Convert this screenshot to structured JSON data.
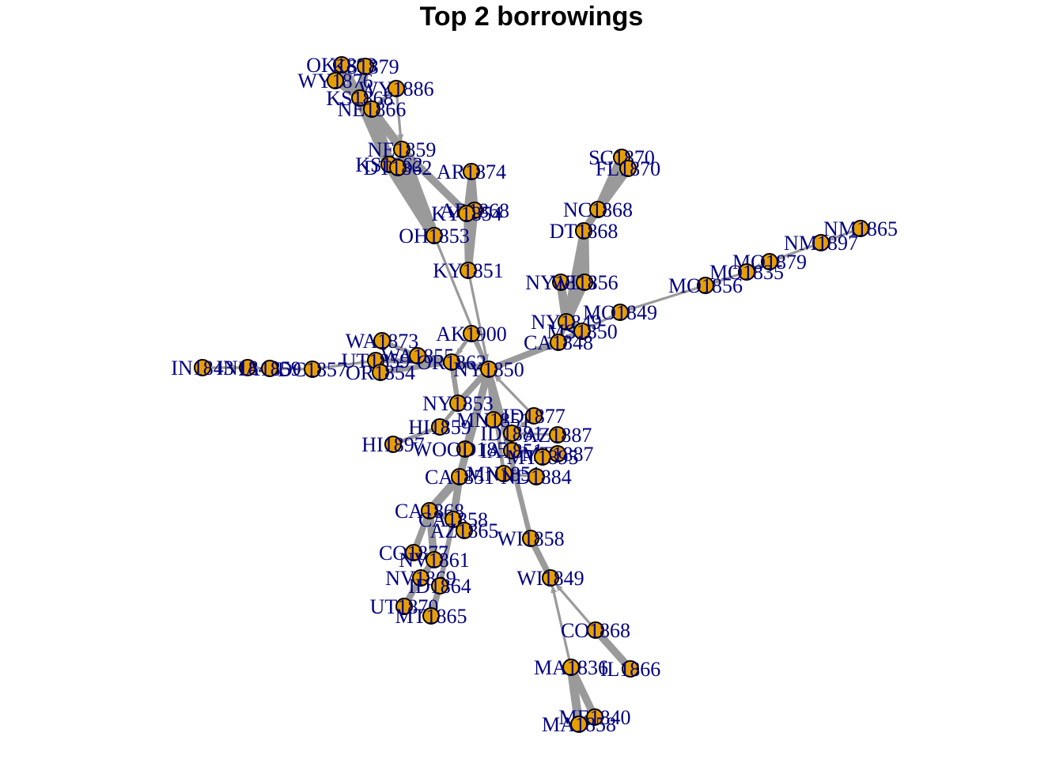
{
  "title": "Top 2 borrowings",
  "colors": {
    "edge": "#9a9a9a",
    "vertex": "#e69f00",
    "vertex_border": "#000000",
    "label": "#000080"
  },
  "nodes": [
    {
      "id": "OK1893",
      "label": "OK1893"
    },
    {
      "id": "KS1879",
      "label": "KS1879"
    },
    {
      "id": "WY1876",
      "label": "WY1876"
    },
    {
      "id": "WY1886",
      "label": "WY1886"
    },
    {
      "id": "KS1868",
      "label": "KS1868"
    },
    {
      "id": "NE1866",
      "label": "NE1866"
    },
    {
      "id": "NE1859",
      "label": "NE1859"
    },
    {
      "id": "KS1862",
      "label": "KS1862"
    },
    {
      "id": "DT1862",
      "label": "DT1862"
    },
    {
      "id": "AR1874",
      "label": "AR1874"
    },
    {
      "id": "AR1868",
      "label": "AR1868"
    },
    {
      "id": "KY1854",
      "label": "KY1854"
    },
    {
      "id": "OH1853",
      "label": "OH1853"
    },
    {
      "id": "KY1851",
      "label": "KY1851"
    },
    {
      "id": "SC1870",
      "label": "SC1870"
    },
    {
      "id": "FL1870",
      "label": "FL1870"
    },
    {
      "id": "NC1868",
      "label": "NC1868"
    },
    {
      "id": "DT1868",
      "label": "DT1868"
    },
    {
      "id": "NM1865",
      "label": "NM1865"
    },
    {
      "id": "NM1897",
      "label": "NM1897"
    },
    {
      "id": "MO1879",
      "label": "MO1879"
    },
    {
      "id": "MO1835",
      "label": "MO1835"
    },
    {
      "id": "MO1856",
      "label": "MO1856"
    },
    {
      "id": "NY1856",
      "label": "NY1856"
    },
    {
      "id": "WI1856",
      "label": "WI1856"
    },
    {
      "id": "MO1849",
      "label": "MO1849"
    },
    {
      "id": "NY1849",
      "label": "NY1849"
    },
    {
      "id": "MS1850",
      "label": "MS1850"
    },
    {
      "id": "CA1848",
      "label": "CA1848"
    },
    {
      "id": "AK1900",
      "label": "AK1900"
    },
    {
      "id": "WA1873",
      "label": "WA1873"
    },
    {
      "id": "WA1855",
      "label": "WA1855"
    },
    {
      "id": "UT1859",
      "label": "UT1859"
    },
    {
      "id": "OR1854",
      "label": "OR1854"
    },
    {
      "id": "OR1862",
      "label": "OR1862"
    },
    {
      "id": "NY1850",
      "label": "NY1850"
    },
    {
      "id": "IN1843",
      "label": "IN1843"
    },
    {
      "id": "IN1848",
      "label": "IN1848"
    },
    {
      "id": "IA1859",
      "label": "IA1859"
    },
    {
      "id": "DC1857",
      "label": "DC1857"
    },
    {
      "id": "NY1853",
      "label": "NY1853"
    },
    {
      "id": "HI1859",
      "label": "HI1859"
    },
    {
      "id": "MN1851",
      "label": "MN1851"
    },
    {
      "id": "ID1877",
      "label": "ID1877"
    },
    {
      "id": "ID1881",
      "label": "ID1881"
    },
    {
      "id": "AZ1887",
      "label": "AZ1887"
    },
    {
      "id": "HI1897",
      "label": "HI1897"
    },
    {
      "id": "WOOD1857",
      "label": "WOOD1857"
    },
    {
      "id": "IA1851",
      "label": "IA1851"
    },
    {
      "id": "MT1887",
      "label": "MT1887"
    },
    {
      "id": "MT1895",
      "label": "MT1895"
    },
    {
      "id": "CA1851",
      "label": "CA1851"
    },
    {
      "id": "MN1851b",
      "label": "MN1851"
    },
    {
      "id": "ND1884",
      "label": "ND1884"
    },
    {
      "id": "CA1868",
      "label": "CA1868"
    },
    {
      "id": "CA1858",
      "label": "CA1858"
    },
    {
      "id": "AZ1865",
      "label": "AZ1865"
    },
    {
      "id": "WI1858",
      "label": "WI1858"
    },
    {
      "id": "CO1877",
      "label": "CO1877"
    },
    {
      "id": "NV1861",
      "label": "NV1861"
    },
    {
      "id": "NV1869",
      "label": "NV1869"
    },
    {
      "id": "ID1864",
      "label": "ID1864"
    },
    {
      "id": "WI1849",
      "label": "WI1849"
    },
    {
      "id": "UT1870",
      "label": "UT1870"
    },
    {
      "id": "MT1865",
      "label": "MT1865"
    },
    {
      "id": "CO1868",
      "label": "CO1868"
    },
    {
      "id": "MA1836",
      "label": "MA1836"
    },
    {
      "id": "IL1866",
      "label": "IL1866"
    },
    {
      "id": "ME1840",
      "label": "ME1840"
    },
    {
      "id": "MA1858",
      "label": "MA1858"
    }
  ],
  "edges": [
    {
      "from": "KS1879",
      "to": "KS1868",
      "w": 7
    },
    {
      "from": "OK1893",
      "to": "KS1868",
      "w": 7
    },
    {
      "from": "WY1876",
      "to": "KS1868",
      "w": 6
    },
    {
      "from": "KS1868",
      "to": "KS1862",
      "w": 9
    },
    {
      "from": "NE1866",
      "to": "KS1862",
      "w": 9
    },
    {
      "from": "NE1866",
      "to": "NE1859",
      "w": 7
    },
    {
      "from": "WY1886",
      "to": "NE1866",
      "w": 3
    },
    {
      "from": "NE1859",
      "to": "OH1853",
      "w": 8
    },
    {
      "from": "KS1862",
      "to": "OH1853",
      "w": 9
    },
    {
      "from": "DT1862",
      "to": "OH1853",
      "w": 7
    },
    {
      "from": "NE1859",
      "to": "KY1854",
      "w": 6
    },
    {
      "from": "AR1874",
      "to": "AR1868",
      "w": 6
    },
    {
      "from": "AR1874",
      "to": "KY1854",
      "w": 5
    },
    {
      "from": "AR1868",
      "to": "KY1851",
      "w": 6
    },
    {
      "from": "KY1854",
      "to": "KY1851",
      "w": 5
    },
    {
      "from": "WY1886",
      "to": "NE1859",
      "w": 2
    },
    {
      "from": "OH1853",
      "to": "NY1850",
      "w": 2
    },
    {
      "from": "KY1851",
      "to": "NY1850",
      "w": 2
    },
    {
      "from": "SC1870",
      "to": "NC1868",
      "w": 7
    },
    {
      "from": "FL1870",
      "to": "NC1868",
      "w": 7
    },
    {
      "from": "NC1868",
      "to": "DT1868",
      "w": 6
    },
    {
      "from": "DT1868",
      "to": "WI1856",
      "w": 8
    },
    {
      "from": "DT1868",
      "to": "NY1849",
      "w": 6
    },
    {
      "from": "WI1856",
      "to": "NY1849",
      "w": 7
    },
    {
      "from": "NY1856",
      "to": "NY1849",
      "w": 7
    },
    {
      "from": "NY1849",
      "to": "MS1850",
      "w": 7
    },
    {
      "from": "NY1849",
      "to": "CA1848",
      "w": 4
    },
    {
      "from": "NM1865",
      "to": "NM1897",
      "w": 2
    },
    {
      "from": "NM1897",
      "to": "MO1879",
      "w": 2
    },
    {
      "from": "MO1879",
      "to": "MO1835",
      "w": 2
    },
    {
      "from": "MO1835",
      "to": "MO1856",
      "w": 2
    },
    {
      "from": "MO1856",
      "to": "MO1849",
      "w": 2
    },
    {
      "from": "MO1849",
      "to": "CA1848",
      "w": 2
    },
    {
      "from": "CA1848",
      "to": "NY1850",
      "w": 5
    },
    {
      "from": "MS1850",
      "to": "NY1850",
      "w": 4
    },
    {
      "from": "AK1900",
      "to": "NY1850",
      "w": 3
    },
    {
      "from": "AK1900",
      "to": "OR1862",
      "w": 3
    },
    {
      "from": "IN1843",
      "to": "IN1848",
      "w": 2
    },
    {
      "from": "IN1848",
      "to": "IA1859",
      "w": 2
    },
    {
      "from": "IA1859",
      "to": "DC1857",
      "w": 2
    },
    {
      "from": "DC1857",
      "to": "UT1859",
      "w": 2
    },
    {
      "from": "WA1873",
      "to": "WA1855",
      "w": 3
    },
    {
      "from": "WA1855",
      "to": "OR1862",
      "w": 4
    },
    {
      "from": "UT1859",
      "to": "OR1862",
      "w": 4
    },
    {
      "from": "OR1854",
      "to": "OR1862",
      "w": 4
    },
    {
      "from": "OR1862",
      "to": "NY1850",
      "w": 5
    },
    {
      "from": "NY1853",
      "to": "NY1850",
      "w": 5
    },
    {
      "from": "NY1853",
      "to": "OR1862",
      "w": 4
    },
    {
      "from": "HI1859",
      "to": "NY1850",
      "w": 3
    },
    {
      "from": "HI1897",
      "to": "HI1859",
      "w": 3
    },
    {
      "from": "MN1851",
      "to": "NY1850",
      "w": 4
    },
    {
      "from": "ID1877",
      "to": "NY1850",
      "w": 2
    },
    {
      "from": "ID1881",
      "to": "ID1877",
      "w": 2
    },
    {
      "from": "AZ1887",
      "to": "ID1881",
      "w": 2
    },
    {
      "from": "WOOD1857",
      "to": "NY1850",
      "w": 5
    },
    {
      "from": "IA1851",
      "to": "NY1850",
      "w": 4
    },
    {
      "from": "MT1887",
      "to": "IA1851",
      "w": 3
    },
    {
      "from": "MT1895",
      "to": "MT1887",
      "w": 2
    },
    {
      "from": "CA1851",
      "to": "NY1850",
      "w": 6
    },
    {
      "from": "MN1851b",
      "to": "NY1850",
      "w": 3
    },
    {
      "from": "ND1884",
      "to": "MN1851b",
      "w": 2
    },
    {
      "from": "CA1868",
      "to": "CA1851",
      "w": 7
    },
    {
      "from": "CA1858",
      "to": "CA1851",
      "w": 6
    },
    {
      "from": "AZ1865",
      "to": "CA1858",
      "w": 5
    },
    {
      "from": "CA1858",
      "to": "CA1868",
      "w": 5
    },
    {
      "from": "CO1877",
      "to": "CA1868",
      "w": 5
    },
    {
      "from": "NV1861",
      "to": "CA1868",
      "w": 6
    },
    {
      "from": "NV1869",
      "to": "NV1861",
      "w": 5
    },
    {
      "from": "ID1864",
      "to": "CA1858",
      "w": 4
    },
    {
      "from": "UT1870",
      "to": "NV1869",
      "w": 5
    },
    {
      "from": "MT1865",
      "to": "ID1864",
      "w": 5
    },
    {
      "from": "WI1858",
      "to": "NY1850",
      "w": 4
    },
    {
      "from": "WI1849",
      "to": "WI1858",
      "w": 5
    },
    {
      "from": "CO1868",
      "to": "WI1849",
      "w": 2
    },
    {
      "from": "IL1866",
      "to": "CO1868",
      "w": 6
    },
    {
      "from": "MA1836",
      "to": "WI1849",
      "w": 2
    },
    {
      "from": "ME1840",
      "to": "MA1836",
      "w": 6
    },
    {
      "from": "MA1858",
      "to": "MA1836",
      "w": 7
    },
    {
      "from": "MA1858",
      "to": "ME1840",
      "w": 3
    }
  ]
}
